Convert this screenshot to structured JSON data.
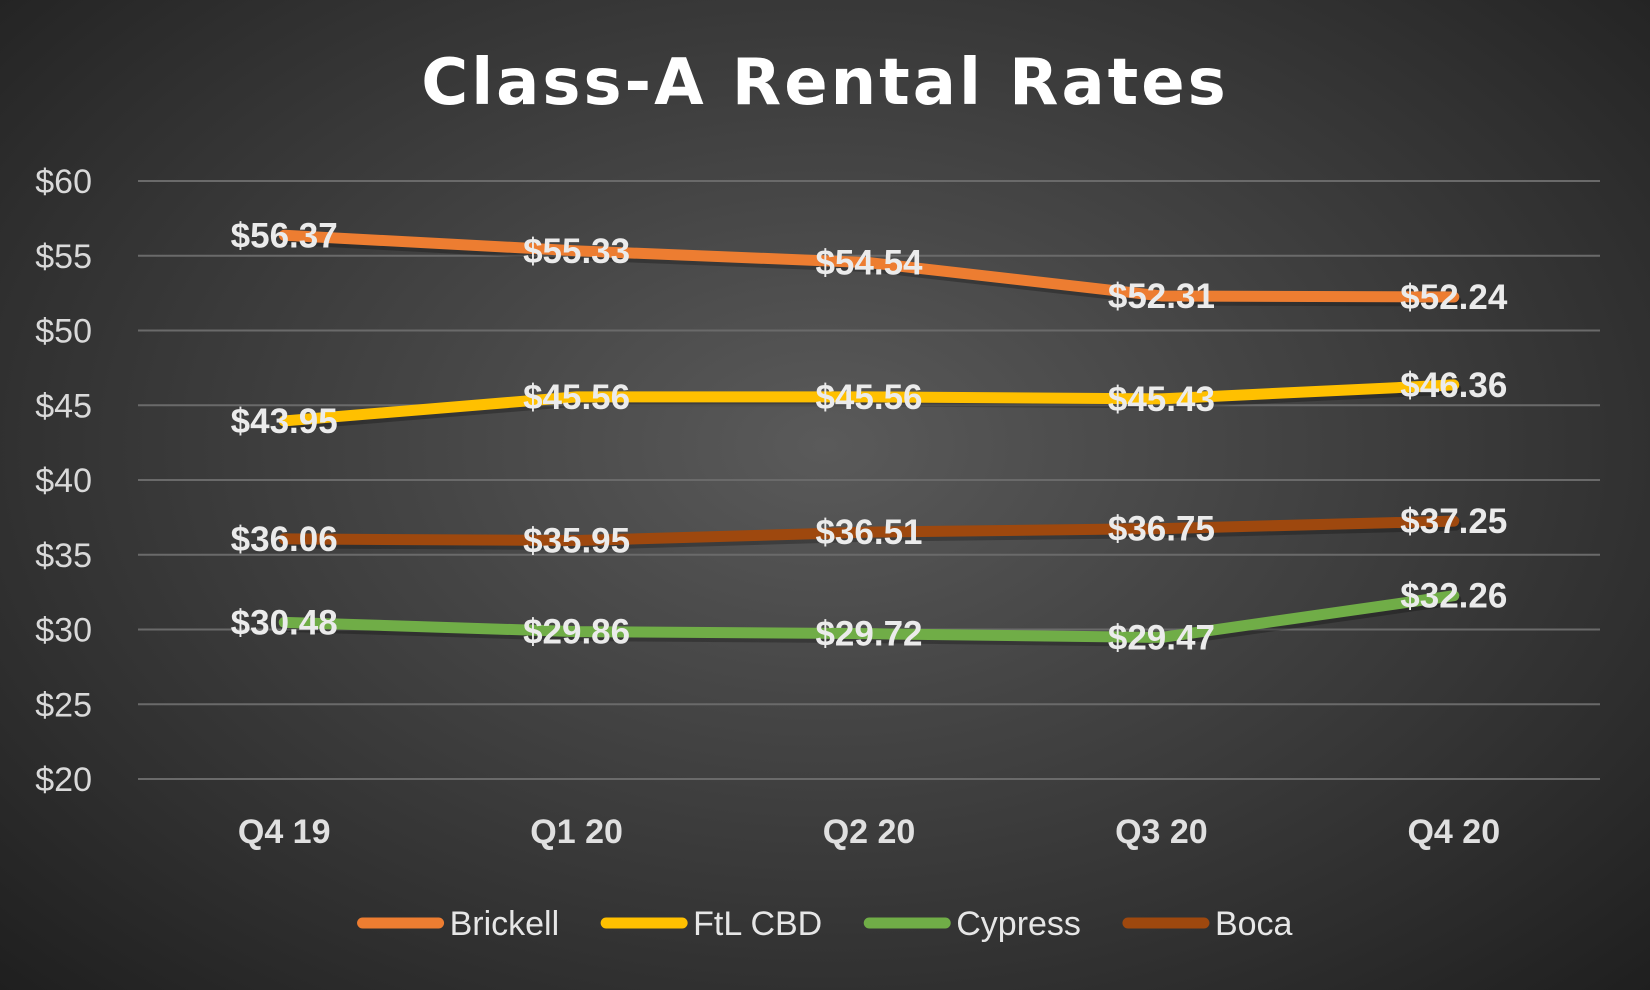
{
  "chart_data": {
    "type": "line",
    "title": "Class-A Rental Rates",
    "xlabel": "",
    "ylabel": "",
    "categories": [
      "Q4 19",
      "Q1 20",
      "Q2 20",
      "Q3 20",
      "Q4 20"
    ],
    "ylim": [
      20,
      60
    ],
    "yticks": [
      20,
      25,
      30,
      35,
      40,
      45,
      50,
      55,
      60
    ],
    "ytick_labels": [
      "$20",
      "$25",
      "$30",
      "$35",
      "$40",
      "$45",
      "$50",
      "$55",
      "$60"
    ],
    "grid": true,
    "legend_position": "bottom",
    "series": [
      {
        "name": "Brickell",
        "color": "#ED7D31",
        "values": [
          56.37,
          55.33,
          54.54,
          52.31,
          52.24
        ],
        "labels": [
          "$56.37",
          "$55.33",
          "$54.54",
          "$52.31",
          "$52.24"
        ]
      },
      {
        "name": "FtL CBD",
        "color": "#FFC000",
        "values": [
          43.95,
          45.56,
          45.56,
          45.43,
          46.36
        ],
        "labels": [
          "$43.95",
          "$45.56",
          "$45.56",
          "$45.43",
          "$46.36"
        ]
      },
      {
        "name": "Cypress",
        "color": "#70AD47",
        "values": [
          30.48,
          29.86,
          29.72,
          29.47,
          32.26
        ],
        "labels": [
          "$30.48",
          "$29.86",
          "$29.72",
          "$29.47",
          "$32.26"
        ]
      },
      {
        "name": "Boca",
        "color": "#9E480E",
        "values": [
          36.06,
          35.95,
          36.51,
          36.75,
          37.25
        ],
        "labels": [
          "$36.06",
          "$35.95",
          "$36.51",
          "$36.75",
          "$37.25"
        ]
      }
    ]
  }
}
